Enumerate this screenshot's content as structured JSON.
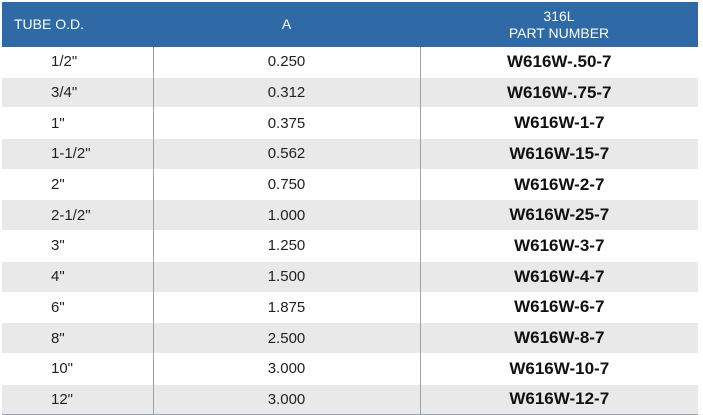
{
  "headers": {
    "tube_od": "TUBE O.D.",
    "a": "A",
    "part_line1": "316L",
    "part_line2": "PART NUMBER"
  },
  "rows": [
    {
      "od": "1/2\"",
      "a": "0.250",
      "part": "W616W-.50-7"
    },
    {
      "od": "3/4\"",
      "a": "0.312",
      "part": "W616W-.75-7"
    },
    {
      "od": "1\"",
      "a": "0.375",
      "part": "W616W-1-7"
    },
    {
      "od": "1-1/2\"",
      "a": "0.562",
      "part": "W616W-15-7"
    },
    {
      "od": "2\"",
      "a": "0.750",
      "part": "W616W-2-7"
    },
    {
      "od": "2-1/2\"",
      "a": "1.000",
      "part": "W616W-25-7"
    },
    {
      "od": "3\"",
      "a": "1.250",
      "part": "W616W-3-7"
    },
    {
      "od": "4\"",
      "a": "1.500",
      "part": "W616W-4-7"
    },
    {
      "od": "6\"",
      "a": "1.875",
      "part": "W616W-6-7"
    },
    {
      "od": "8\"",
      "a": "2.500",
      "part": "W616W-8-7"
    },
    {
      "od": "10\"",
      "a": "3.000",
      "part": "W616W-10-7"
    },
    {
      "od": "12\"",
      "a": "3.000",
      "part": "W616W-12-7"
    }
  ],
  "colors": {
    "header_bg": "#2f6aa6",
    "stripe_bg": "#e9e9ea"
  }
}
